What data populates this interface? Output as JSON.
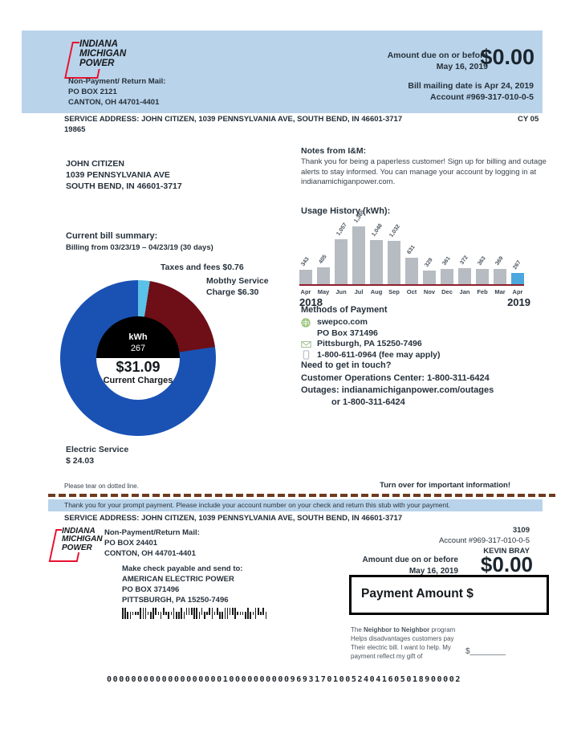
{
  "colors": {
    "header_bg": "#b9d3ea",
    "logo_red": "#e8112d",
    "bar_gray": "#b6bcc2",
    "bar_blue": "#4aa8de",
    "baseline_red": "#8e1f2c",
    "donut_blue": "#1a52b4",
    "donut_maroon": "#6e0e17",
    "donut_lightblue": "#5bc1e7"
  },
  "logo": {
    "line1": "INDIANA",
    "line2": "MICHIGAN",
    "line3": "POWER"
  },
  "header": {
    "return_mail_label": "Non-Payment/ Return Mail:",
    "return_mail_line1": "PO BOX 2121",
    "return_mail_line2": "CANTON, OH 44701-4401",
    "amount_due_label": "Amount due on or before",
    "amount_due_date": "May 16, 2019",
    "amount_due_value": "$0.00",
    "mailing_date": "Bill mailing date is Apr 24, 2019",
    "account": "Account #969-317-010-0-5"
  },
  "service_line": {
    "address": "SERVICE ADDRESS: JOHN CITIZEN, 1039 PENNSYLVANIA AVE, SOUTH BEND, IN 46601-3717",
    "cycle": "CY 05",
    "code": "19865"
  },
  "customer": {
    "name": "JOHN CITIZEN",
    "address1": "1039 PENNSYLVANIA AVE",
    "address2": "SOUTH BEND, IN 46601-3717"
  },
  "notes": {
    "title": "Notes from I&M:",
    "body": "Thank you for being a paperless customer! Sign up for billing and outage alerts to stay informed. You can manage your account by logging in at indianamichiganpower.com."
  },
  "bill_summary": {
    "title": "Current bill summary:",
    "period": "Billing from 03/23/19 – 04/23/19 (30 days)"
  },
  "donut": {
    "taxes_label": "Taxes and fees $0.76",
    "monthly_label1": "Mobthy Service",
    "monthly_label2": "Charge $6.30",
    "electric_label1": "Electric Service",
    "electric_label2": "$ 24.03",
    "center_unit": "kWh",
    "center_kwh": "267",
    "center_amount": "$31.09",
    "center_caption": "Current Charges"
  },
  "usage": {
    "year_left": "2018",
    "year_right": "2019"
  },
  "chart_data": [
    {
      "type": "pie",
      "title": "Current bill summary donut",
      "center_labels": [
        "kWh",
        "267",
        "$31.09",
        "Current Charges"
      ],
      "slices": [
        {
          "name": "Taxes and fees",
          "value": 0.76,
          "color": "#5bc1e7"
        },
        {
          "name": "Mobthy Service Charge",
          "value": 6.3,
          "color": "#6e0e17"
        },
        {
          "name": "Electric Service",
          "value": 24.03,
          "color": "#1a52b4"
        }
      ],
      "total": 31.09,
      "legend_position": "around"
    },
    {
      "type": "bar",
      "title": "Usage History (kWh):",
      "categories": [
        "Apr",
        "May",
        "Jun",
        "Jul",
        "Aug",
        "Sep",
        "Oct",
        "Nov",
        "Dec",
        "Jan",
        "Feb",
        "Mar",
        "Apr"
      ],
      "values": [
        343,
        405,
        1057,
        1365,
        1048,
        1032,
        631,
        329,
        361,
        372,
        363,
        369,
        267
      ],
      "value_labels": [
        "343",
        "405",
        "1,057",
        "1,365",
        "1,048",
        "1,032",
        "631",
        "329",
        "361",
        "372",
        "363",
        "369",
        "267"
      ],
      "year_left": "2018",
      "year_right": "2019",
      "highlight_index": 12,
      "xlabel": "",
      "ylabel": "kWh",
      "ylim": [
        0,
        1365
      ],
      "grid": false
    }
  ],
  "payment_methods": {
    "title": "Methods of Payment",
    "website": "swepco.com",
    "po_box": "PO Box 371496",
    "city": "Pittsburgh, PA 15250-7496",
    "phone": "1-800-611-0964 (fee may apply)",
    "touch_title": "Need to get in touch?",
    "customer_ops": "Customer Operations Center: 1-800-311-6424",
    "outages": "Outages: indianamichiganpower.com/outages",
    "outages2": "or 1-800-311-6424"
  },
  "tear": {
    "tear_note": "Please tear on dotted line.",
    "turn_over": "Turn over for important information!",
    "thanks": "Thank you for your prompt payment. Please include your account number on your check and return this stub with your payment.",
    "service_address": "SERVICE ADDRESS: JOHN CITIZEN, 1039 PENNSYLVANIA AVE, SOUTH BEND, IN 46601-3717"
  },
  "stub": {
    "return_mail_label": "Non-Payment/Return Mail:",
    "return_mail_line1": "PO BOX 24401",
    "return_mail_line2": "CONTON, OH 44701-4401",
    "payable_label": "Make check payable and send to:",
    "payable_name": "AMERICAN ELECTRIC POWER",
    "payable_line1": "PO BOX 371496",
    "payable_line2": "PITTSBURGH, PA 15250-7496",
    "page_code": "3109",
    "account": "Account #969-317-010-0-5",
    "customer_name": "KEVIN BRAY",
    "amount_due_label": "Amount due on or before",
    "amount_due_date": "May 16, 2019",
    "amount_due_value": "$0.00",
    "payment_amount_label": "Payment Amount $",
    "neighbor_prefix": "The ",
    "neighbor_bold": "Neighbor to Neighbor",
    "neighbor_suffix": " program",
    "neighbor_line2": "Helps disadvantages customers pay",
    "neighbor_line3": "Their electric bill. I want to help. My",
    "neighbor_line4": "payment reflect my gift of",
    "gift_amount": "$________"
  },
  "footer": {
    "ocr_line": "0000000000000000000100000000009693170100524041605018900002"
  }
}
